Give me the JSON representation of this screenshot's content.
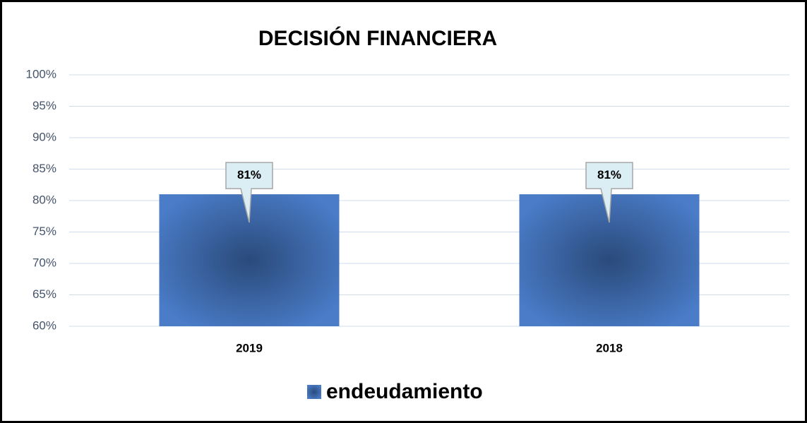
{
  "chart_data": {
    "type": "bar",
    "title": "DECISIÓN FINANCIERA",
    "categories": [
      "2019",
      "2018"
    ],
    "series": [
      {
        "name": "endeudamiento",
        "color": "#4472c4",
        "values": [
          81,
          81
        ],
        "value_labels": [
          "81%",
          "81%"
        ]
      }
    ],
    "ylim": [
      60,
      100
    ],
    "yticks": [
      {
        "value": 60,
        "label": "60%"
      },
      {
        "value": 65,
        "label": "65%"
      },
      {
        "value": 70,
        "label": "70%"
      },
      {
        "value": 75,
        "label": "75%"
      },
      {
        "value": 80,
        "label": "80%"
      },
      {
        "value": 85,
        "label": "85%"
      },
      {
        "value": 90,
        "label": "90%"
      },
      {
        "value": 95,
        "label": "95%"
      },
      {
        "value": 100,
        "label": "100%"
      }
    ],
    "grid": true,
    "legend": "bottom"
  }
}
